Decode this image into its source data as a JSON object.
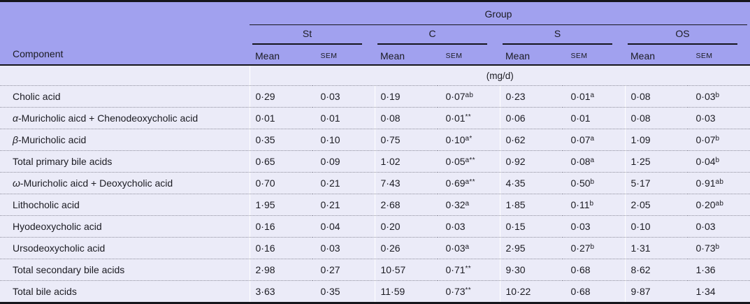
{
  "table": {
    "top_header": "Group",
    "component_header": "Component",
    "units": "(mg/d)",
    "groups": [
      "St",
      "C",
      "S",
      "OS"
    ],
    "sub_headers": {
      "mean": "Mean",
      "sem": "SEM"
    },
    "colors": {
      "header_background": "#a1a1ef",
      "body_background": "#ebebf8",
      "rule_color": "#15151c",
      "dotted_separator": "#8d8d9b",
      "text": "#1b1b22"
    },
    "rows": [
      {
        "label_prefix": "",
        "label": "Cholic acid",
        "cells": [
          [
            "0·29",
            ""
          ],
          [
            "0·03",
            ""
          ],
          [
            "0·19",
            ""
          ],
          [
            "0·07",
            "ab"
          ],
          [
            "0·23",
            ""
          ],
          [
            "0·01",
            "a"
          ],
          [
            "0·08",
            ""
          ],
          [
            "0·03",
            "b"
          ]
        ]
      },
      {
        "label_prefix": "α",
        "label": "-Muricholic aicd + Chenodeoxycholic acid",
        "cells": [
          [
            "0·01",
            ""
          ],
          [
            "0·01",
            ""
          ],
          [
            "0·08",
            ""
          ],
          [
            "0·01",
            "**"
          ],
          [
            "0·06",
            ""
          ],
          [
            "0·01",
            ""
          ],
          [
            "0·08",
            ""
          ],
          [
            "0·03",
            ""
          ]
        ]
      },
      {
        "label_prefix": "β",
        "label": "-Muricholic acid",
        "cells": [
          [
            "0·35",
            ""
          ],
          [
            "0·10",
            ""
          ],
          [
            "0·75",
            ""
          ],
          [
            "0·10",
            "a*"
          ],
          [
            "0·62",
            ""
          ],
          [
            "0·07",
            "a"
          ],
          [
            "1·09",
            ""
          ],
          [
            "0·07",
            "b"
          ]
        ]
      },
      {
        "label_prefix": "",
        "label": "Total primary bile acids",
        "cells": [
          [
            "0·65",
            ""
          ],
          [
            "0·09",
            ""
          ],
          [
            "1·02",
            ""
          ],
          [
            "0·05",
            "a**"
          ],
          [
            "0·92",
            ""
          ],
          [
            "0·08",
            "a"
          ],
          [
            "1·25",
            ""
          ],
          [
            "0·04",
            "b"
          ]
        ]
      },
      {
        "label_prefix": "ω",
        "label": "-Muricholic aicd + Deoxycholic acid",
        "cells": [
          [
            "0·70",
            ""
          ],
          [
            "0·21",
            ""
          ],
          [
            "7·43",
            ""
          ],
          [
            "0·69",
            "a**"
          ],
          [
            "4·35",
            ""
          ],
          [
            "0·50",
            "b"
          ],
          [
            "5·17",
            ""
          ],
          [
            "0·91",
            "ab"
          ]
        ]
      },
      {
        "label_prefix": "",
        "label": "Lithocholic acid",
        "cells": [
          [
            "1·95",
            ""
          ],
          [
            "0·21",
            ""
          ],
          [
            "2·68",
            ""
          ],
          [
            "0·32",
            "a"
          ],
          [
            "1·85",
            ""
          ],
          [
            "0·11",
            "b"
          ],
          [
            "2·05",
            ""
          ],
          [
            "0·20",
            "ab"
          ]
        ]
      },
      {
        "label_prefix": "",
        "label": "Hyodeoxycholic acid",
        "cells": [
          [
            "0·16",
            ""
          ],
          [
            "0·04",
            ""
          ],
          [
            "0·20",
            ""
          ],
          [
            "0·03",
            ""
          ],
          [
            "0·15",
            ""
          ],
          [
            "0·03",
            ""
          ],
          [
            "0·10",
            ""
          ],
          [
            "0·03",
            ""
          ]
        ]
      },
      {
        "label_prefix": "",
        "label": "Ursodeoxycholic acid",
        "cells": [
          [
            "0·16",
            ""
          ],
          [
            "0·03",
            ""
          ],
          [
            "0·26",
            ""
          ],
          [
            "0·03",
            "a"
          ],
          [
            "2·95",
            ""
          ],
          [
            "0·27",
            "b"
          ],
          [
            "1·31",
            ""
          ],
          [
            "0·73",
            "b"
          ]
        ]
      },
      {
        "label_prefix": "",
        "label": "Total secondary bile acids",
        "cells": [
          [
            "2·98",
            ""
          ],
          [
            "0·27",
            ""
          ],
          [
            "10·57",
            ""
          ],
          [
            "0·71",
            "**"
          ],
          [
            "9·30",
            ""
          ],
          [
            "0·68",
            ""
          ],
          [
            "8·62",
            ""
          ],
          [
            "1·36",
            ""
          ]
        ]
      },
      {
        "label_prefix": "",
        "label": "Total bile acids",
        "cells": [
          [
            "3·63",
            ""
          ],
          [
            "0·35",
            ""
          ],
          [
            "11·59",
            ""
          ],
          [
            "0·73",
            "**"
          ],
          [
            "10·22",
            ""
          ],
          [
            "0·68",
            ""
          ],
          [
            "9·87",
            ""
          ],
          [
            "1·34",
            ""
          ]
        ]
      }
    ]
  }
}
